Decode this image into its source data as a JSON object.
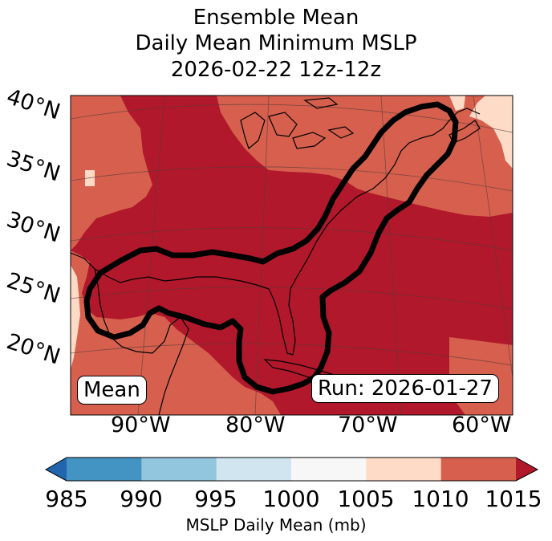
{
  "title_lines": [
    "Ensemble Mean",
    "Daily Mean Minimum MSLP",
    "2026-02-22 12z-12z"
  ],
  "lat_labels": [
    "40°N",
    "35°N",
    "30°N",
    "25°N",
    "20°N"
  ],
  "lon_labels": [
    "90°W",
    "80°W",
    "70°W",
    "60°W"
  ],
  "mean_box": "Mean",
  "run_box": "Run: 2026-01-27",
  "colorbar": {
    "label": "MSLP Daily Mean (mb)",
    "ticks": [
      "985",
      "990",
      "995",
      "1000",
      "1005",
      "1010",
      "1015"
    ],
    "colors": [
      "#2166ac",
      "#4393c3",
      "#92c5de",
      "#d1e5f0",
      "#f7f7f7",
      "#fddbc7",
      "#d6604d",
      "#b2182b"
    ]
  },
  "map_colors": {
    "deep_low": "#b2182b",
    "mid": "#d6604d",
    "high": "#fddbc7",
    "contour": "#000000"
  }
}
